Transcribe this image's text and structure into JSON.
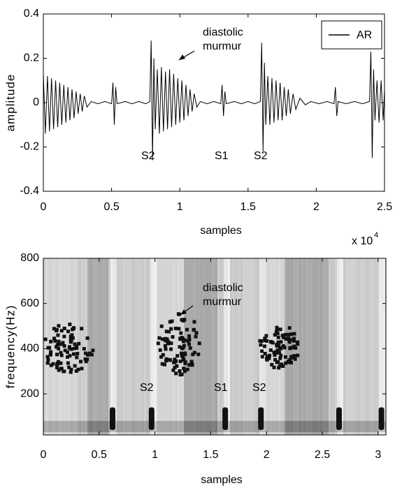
{
  "chart_data": [
    {
      "type": "line",
      "ylabel": "amplitude",
      "xlabel": "samples",
      "x_scale_label": {
        "base": "x 10",
        "exponent": "4"
      },
      "legend": "upper right",
      "xlim": [
        0,
        25000
      ],
      "xticks": [
        0,
        {
          "value": 5000,
          "label": "0.5"
        },
        {
          "value": 10000,
          "label": "1"
        },
        {
          "value": 15000,
          "label": "1.5"
        },
        {
          "value": 20000,
          "label": "2"
        },
        {
          "value": 25000,
          "label": "2.5"
        }
      ],
      "ylim": [
        -0.4,
        0.4
      ],
      "yticks": [
        -0.4,
        -0.2,
        0,
        0.2,
        0.4
      ],
      "annotations": [
        "diastolic",
        "murmur",
        "S2",
        "S1",
        "S2"
      ],
      "series": [
        {
          "name": "AR",
          "color": "#000000",
          "x": [
            0,
            150,
            300,
            450,
            600,
            750,
            900,
            1050,
            1200,
            1350,
            1500,
            1650,
            1800,
            1950,
            2100,
            2250,
            2400,
            2550,
            2700,
            2850,
            3000,
            3200,
            3500,
            4000,
            4500,
            5000,
            5100,
            5200,
            5300,
            5400,
            6000,
            6500,
            7000,
            7500,
            7800,
            7900,
            8000,
            8100,
            8200,
            8350,
            8500,
            8650,
            8800,
            8950,
            9100,
            9250,
            9400,
            9550,
            9700,
            9850,
            10000,
            10150,
            10300,
            10450,
            10600,
            10750,
            10900,
            11050,
            11250,
            11500,
            12000,
            12500,
            13000,
            13100,
            13200,
            13300,
            13400,
            14000,
            14500,
            15000,
            15500,
            15900,
            16000,
            16100,
            16200,
            16300,
            16450,
            16600,
            16750,
            16900,
            17050,
            17200,
            17350,
            17500,
            17650,
            17800,
            17950,
            18100,
            18300,
            18500,
            18800,
            19200,
            19600,
            20200,
            20800,
            21300,
            21400,
            21500,
            21600,
            22200,
            22800,
            23400,
            23900,
            24000,
            24100,
            24200,
            24300,
            24450,
            24600,
            24750,
            24900,
            25000
          ],
          "values": [
            0.13,
            -0.14,
            0.12,
            -0.13,
            0.11,
            -0.12,
            0.1,
            -0.11,
            0.09,
            -0.1,
            0.08,
            -0.09,
            0.07,
            -0.08,
            0.06,
            -0.07,
            0.05,
            -0.05,
            0.04,
            -0.04,
            0.03,
            -0.02,
            0.005,
            -0.005,
            0.005,
            -0.005,
            0.09,
            -0.1,
            0.07,
            -0.005,
            0.005,
            -0.005,
            0.005,
            -0.005,
            0.005,
            0.28,
            -0.26,
            0.2,
            -0.12,
            0.15,
            -0.14,
            0.16,
            -0.13,
            0.14,
            -0.12,
            0.15,
            -0.11,
            0.13,
            -0.1,
            0.11,
            -0.09,
            0.1,
            -0.08,
            0.08,
            -0.06,
            0.06,
            -0.04,
            0.04,
            -0.02,
            0.005,
            -0.005,
            0.005,
            -0.005,
            0.08,
            -0.06,
            0.05,
            -0.005,
            0.005,
            -0.005,
            0.005,
            -0.005,
            0.005,
            0.27,
            -0.22,
            0.18,
            -0.1,
            0.12,
            -0.1,
            0.11,
            -0.09,
            0.1,
            -0.08,
            0.09,
            -0.08,
            0.07,
            -0.06,
            0.06,
            -0.05,
            0.04,
            -0.03,
            0.02,
            -0.01,
            0.005,
            -0.005,
            0.005,
            -0.005,
            0.07,
            -0.06,
            0.005,
            -0.005,
            0.005,
            -0.005,
            0.005,
            0.23,
            -0.25,
            0.15,
            -0.08,
            0.1,
            -0.09,
            0.1,
            -0.08,
            0.06
          ]
        }
      ]
    },
    {
      "type": "spectrogram",
      "ylabel": "frequency(Hz)",
      "xlabel": "samples",
      "xlim": [
        0,
        3.07
      ],
      "xticks": [
        0,
        0.5,
        1,
        1.5,
        2,
        2.5,
        3
      ],
      "ylim": [
        18,
        800
      ],
      "yticks": [
        200,
        400,
        600,
        800
      ],
      "annotations": [
        "diastolic",
        "murmur",
        "S2",
        "S1",
        "S2"
      ]
    }
  ]
}
